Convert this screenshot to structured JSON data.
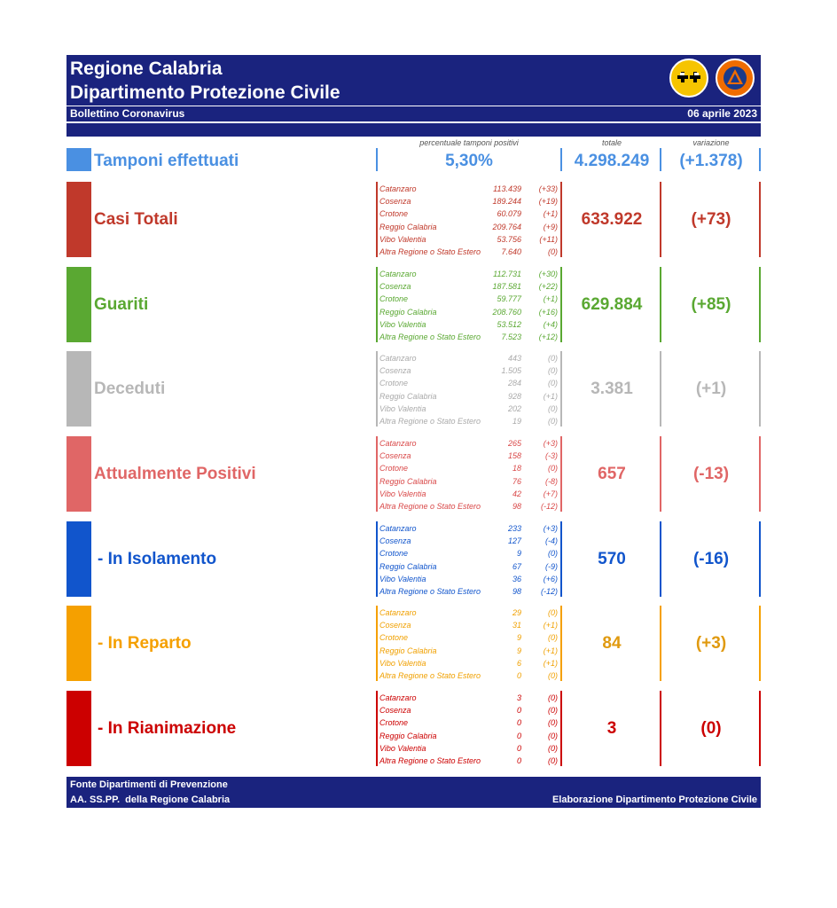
{
  "header": {
    "title1": "Regione Calabria",
    "title2": "Dipartimento Protezione Civile",
    "subtitle": "Bollettino Coronavirus",
    "date": "06 aprile 2023"
  },
  "columns": {
    "perc": "percentuale tamponi positivi",
    "totale": "totale",
    "variazione": "variazione"
  },
  "tamponi": {
    "label": "Tamponi effettuati",
    "perc": "5,30%",
    "total": "4.298.249",
    "delta": "(+1.378)"
  },
  "sections": [
    {
      "label": "Casi Totali",
      "total": "633.922",
      "delta": "(+73)",
      "rows": [
        {
          "name": "Catanzaro",
          "value": "113.439",
          "delta": "(+33)"
        },
        {
          "name": "Cosenza",
          "value": "189.244",
          "delta": "(+19)"
        },
        {
          "name": "Crotone",
          "value": "60.079",
          "delta": "(+1)"
        },
        {
          "name": "Reggio Calabria",
          "value": "209.764",
          "delta": "(+9)"
        },
        {
          "name": "Vibo Valentia",
          "value": "53.756",
          "delta": "(+11)"
        },
        {
          "name": "Altra Regione o Stato Estero",
          "value": "7.640",
          "delta": "(0)"
        }
      ]
    },
    {
      "label": "Guariti",
      "total": "629.884",
      "delta": "(+85)",
      "rows": [
        {
          "name": "Catanzaro",
          "value": "112.731",
          "delta": "(+30)"
        },
        {
          "name": "Cosenza",
          "value": "187.581",
          "delta": "(+22)"
        },
        {
          "name": "Crotone",
          "value": "59.777",
          "delta": "(+1)"
        },
        {
          "name": "Reggio Calabria",
          "value": "208.760",
          "delta": "(+16)"
        },
        {
          "name": "Vibo Valentia",
          "value": "53.512",
          "delta": "(+4)"
        },
        {
          "name": "Altra Regione o Stato Estero",
          "value": "7.523",
          "delta": "(+12)"
        }
      ]
    },
    {
      "label": "Deceduti",
      "total": "3.381",
      "delta": "(+1)",
      "rows": [
        {
          "name": "Catanzaro",
          "value": "443",
          "delta": "(0)"
        },
        {
          "name": "Cosenza",
          "value": "1.505",
          "delta": "(0)"
        },
        {
          "name": "Crotone",
          "value": "284",
          "delta": "(0)"
        },
        {
          "name": "Reggio Calabria",
          "value": "928",
          "delta": "(+1)"
        },
        {
          "name": "Vibo Valentia",
          "value": "202",
          "delta": "(0)"
        },
        {
          "name": "Altra Regione o Stato Estero",
          "value": "19",
          "delta": "(0)"
        }
      ]
    },
    {
      "label": "Attualmente Positivi",
      "total": "657",
      "delta": "(-13)",
      "rows": [
        {
          "name": "Catanzaro",
          "value": "265",
          "delta": "(+3)"
        },
        {
          "name": "Cosenza",
          "value": "158",
          "delta": "(-3)"
        },
        {
          "name": "Crotone",
          "value": "18",
          "delta": "(0)"
        },
        {
          "name": "Reggio Calabria",
          "value": "76",
          "delta": "(-8)"
        },
        {
          "name": "Vibo Valentia",
          "value": "42",
          "delta": "(+7)"
        },
        {
          "name": "Altra Regione o Stato Estero",
          "value": "98",
          "delta": "(-12)"
        }
      ]
    },
    {
      "label": "- In Isolamento",
      "total": "570",
      "delta": "(-16)",
      "rows": [
        {
          "name": "Catanzaro",
          "value": "233",
          "delta": "(+3)"
        },
        {
          "name": "Cosenza",
          "value": "127",
          "delta": "(-4)"
        },
        {
          "name": "Crotone",
          "value": "9",
          "delta": "(0)"
        },
        {
          "name": "Reggio Calabria",
          "value": "67",
          "delta": "(-9)"
        },
        {
          "name": "Vibo Valentia",
          "value": "36",
          "delta": "(+6)"
        },
        {
          "name": "Altra Regione o Stato Estero",
          "value": "98",
          "delta": "(-12)"
        }
      ]
    },
    {
      "label": "- In Reparto",
      "total": "84",
      "delta": "(+3)",
      "rows": [
        {
          "name": "Catanzaro",
          "value": "29",
          "delta": "(0)"
        },
        {
          "name": "Cosenza",
          "value": "31",
          "delta": "(+1)"
        },
        {
          "name": "Crotone",
          "value": "9",
          "delta": "(0)"
        },
        {
          "name": "Reggio Calabria",
          "value": "9",
          "delta": "(+1)"
        },
        {
          "name": "Vibo Valentia",
          "value": "6",
          "delta": "(+1)"
        },
        {
          "name": "Altra Regione o Stato Estero",
          "value": "0",
          "delta": "(0)"
        }
      ]
    },
    {
      "label": "- In Rianimazione",
      "total": "3",
      "delta": "(0)",
      "rows": [
        {
          "name": "Catanzaro",
          "value": "3",
          "delta": "(0)"
        },
        {
          "name": "Cosenza",
          "value": "0",
          "delta": "(0)"
        },
        {
          "name": "Crotone",
          "value": "0",
          "delta": "(0)"
        },
        {
          "name": "Reggio Calabria",
          "value": "0",
          "delta": "(0)"
        },
        {
          "name": "Vibo Valentia",
          "value": "0",
          "delta": "(0)"
        },
        {
          "name": "Altra Regione o Stato Estero",
          "value": "0",
          "delta": "(0)"
        }
      ]
    }
  ],
  "colors": {
    "header_bg": "#1a237e",
    "tamponi": "#4a90e2",
    "casi": "#c0392b",
    "guariti": "#5aa832",
    "deceduti": "#b7b7b7",
    "positivi": "#e06666",
    "isolamento": "#1155cc",
    "reparto": "#f5a000",
    "rianimazione": "#cc0000"
  },
  "footer": {
    "line1": "Fonte Dipartimenti di Prevenzione",
    "line2": "AA. SS.PP.  della Regione Calabria",
    "right": "Elaborazione Dipartimento Protezione Civile"
  }
}
